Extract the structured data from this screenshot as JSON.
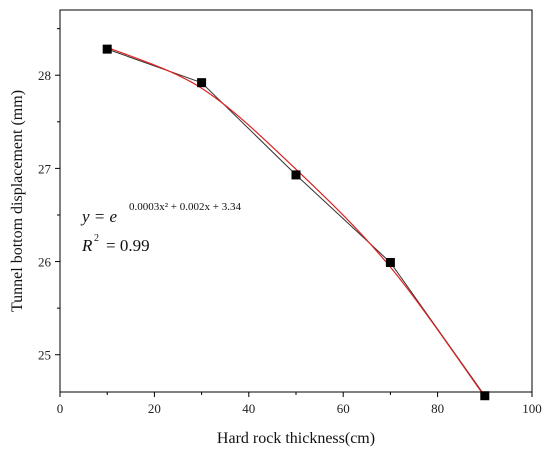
{
  "chart_data": {
    "type": "line",
    "title": "",
    "xlabel": "Hard rock thickness(cm)",
    "ylabel": "Tunnel bottom displacement (mm)",
    "xlim": [
      0,
      100
    ],
    "ylim": [
      24.6,
      28.7
    ],
    "xticks": [
      0,
      20,
      40,
      60,
      80,
      100
    ],
    "yticks": [
      25,
      26,
      27,
      28
    ],
    "x": [
      10,
      30,
      50,
      70,
      90
    ],
    "series": [
      {
        "values": [
          28.28,
          27.92,
          26.93,
          25.99,
          24.56
        ],
        "color": "#000000",
        "marker": "square"
      },
      {
        "kind": "fit",
        "values": [
          28.3,
          27.86,
          26.99,
          25.94,
          24.55
        ],
        "color": "#e02020"
      }
    ],
    "annotations": {
      "equation_lhs": "y = e",
      "equation_exponent": "0.0003x² + 0.002x + 3.34",
      "r2_label": "R",
      "r2_sup": "2",
      "r2_value": "= 0.99"
    },
    "grid": false,
    "legend": "none"
  }
}
